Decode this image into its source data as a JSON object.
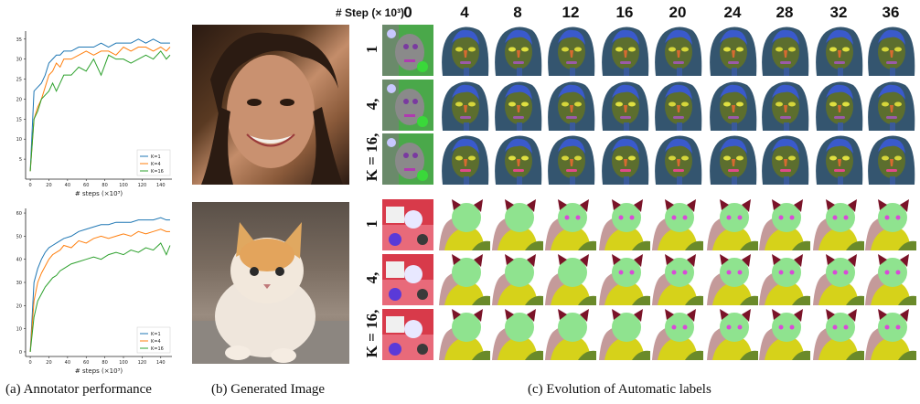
{
  "captions": {
    "a": "(a) Annotator performance",
    "b": "(b) Generated Image",
    "c": "(c) Evolution of Automatic labels"
  },
  "step_header": {
    "title": "# Step (× 10³)",
    "steps": [
      "0",
      "4",
      "8",
      "12",
      "16",
      "20",
      "24",
      "28",
      "32",
      "36"
    ]
  },
  "row_labels": {
    "face": [
      "1",
      "4,",
      "K = 16,"
    ],
    "cat": [
      "1",
      "4,",
      "K = 16,"
    ]
  },
  "colors": {
    "k1": "#1f77b4",
    "k4": "#ff7f0e",
    "k16": "#2ca02c",
    "face_bg_mask": "#34556f",
    "face_skin_mask": "#5c6e2e",
    "cat_body_mask": "#d6d21a",
    "cat_head_mask": "#8fe38f",
    "cat_ear_mask": "#7a1328"
  },
  "chart_data": [
    {
      "type": "line",
      "xlabel": "# steps (×10³)",
      "ylabel": "",
      "xlim": [
        -5,
        152
      ],
      "ylim": [
        0,
        37
      ],
      "xticks": [
        0,
        20,
        40,
        60,
        80,
        100,
        120,
        140
      ],
      "yticks": [
        5,
        10,
        15,
        20,
        25,
        30,
        35
      ],
      "legend_position": "bottom-right",
      "series": [
        {
          "name": "K=1",
          "x": [
            0,
            4,
            8,
            12,
            16,
            20,
            24,
            28,
            32,
            36,
            44,
            52,
            60,
            68,
            76,
            84,
            92,
            100,
            108,
            116,
            124,
            132,
            140,
            146,
            150
          ],
          "y": [
            2,
            22,
            23,
            24,
            26,
            29,
            30,
            31,
            31,
            32,
            32,
            33,
            33,
            33,
            34,
            33,
            34,
            34,
            34,
            35,
            34,
            35,
            34,
            34,
            34
          ]
        },
        {
          "name": "K=4",
          "x": [
            0,
            4,
            8,
            12,
            16,
            20,
            24,
            28,
            32,
            36,
            44,
            52,
            60,
            68,
            76,
            84,
            92,
            100,
            108,
            116,
            124,
            132,
            140,
            146,
            150
          ],
          "y": [
            2,
            15,
            18,
            20,
            23,
            26,
            27,
            29,
            28,
            30,
            30,
            31,
            32,
            31,
            32,
            32,
            31,
            33,
            32,
            33,
            33,
            32,
            33,
            32,
            33
          ]
        },
        {
          "name": "K=16",
          "x": [
            0,
            4,
            8,
            12,
            16,
            20,
            24,
            28,
            32,
            36,
            44,
            52,
            60,
            68,
            76,
            84,
            92,
            100,
            108,
            116,
            124,
            132,
            140,
            146,
            150
          ],
          "y": [
            2,
            15,
            17,
            20,
            21,
            22,
            24,
            22,
            24,
            26,
            26,
            28,
            27,
            30,
            26,
            31,
            30,
            30,
            29,
            30,
            31,
            30,
            32,
            30,
            31
          ]
        }
      ]
    },
    {
      "type": "line",
      "xlabel": "# steps (×10³)",
      "ylabel": "",
      "xlim": [
        -5,
        152
      ],
      "ylim": [
        -2,
        62
      ],
      "xticks": [
        0,
        20,
        40,
        60,
        80,
        100,
        120,
        140
      ],
      "yticks": [
        0,
        10,
        20,
        30,
        40,
        50,
        60
      ],
      "legend_position": "bottom-right",
      "series": [
        {
          "name": "K=1",
          "x": [
            0,
            4,
            8,
            12,
            16,
            20,
            24,
            28,
            32,
            36,
            44,
            52,
            60,
            68,
            76,
            84,
            92,
            100,
            108,
            116,
            124,
            132,
            140,
            146,
            150
          ],
          "y": [
            0,
            30,
            36,
            40,
            43,
            45,
            46,
            47,
            48,
            49,
            50,
            52,
            53,
            54,
            55,
            55,
            56,
            56,
            56,
            57,
            57,
            57,
            58,
            57,
            57
          ]
        },
        {
          "name": "K=4",
          "x": [
            0,
            4,
            8,
            12,
            16,
            20,
            24,
            28,
            32,
            36,
            44,
            52,
            60,
            68,
            76,
            84,
            92,
            100,
            108,
            116,
            124,
            132,
            140,
            146,
            150
          ],
          "y": [
            0,
            22,
            30,
            34,
            37,
            40,
            42,
            43,
            44,
            46,
            45,
            48,
            47,
            49,
            50,
            49,
            50,
            51,
            50,
            52,
            51,
            52,
            53,
            52,
            52
          ]
        },
        {
          "name": "K=16",
          "x": [
            0,
            4,
            8,
            12,
            16,
            20,
            24,
            28,
            32,
            36,
            44,
            52,
            60,
            68,
            76,
            84,
            92,
            100,
            108,
            116,
            124,
            132,
            140,
            146,
            150
          ],
          "y": [
            0,
            15,
            22,
            25,
            28,
            30,
            32,
            33,
            35,
            36,
            38,
            39,
            40,
            41,
            40,
            42,
            43,
            42,
            44,
            43,
            45,
            44,
            47,
            42,
            46
          ]
        }
      ]
    }
  ]
}
